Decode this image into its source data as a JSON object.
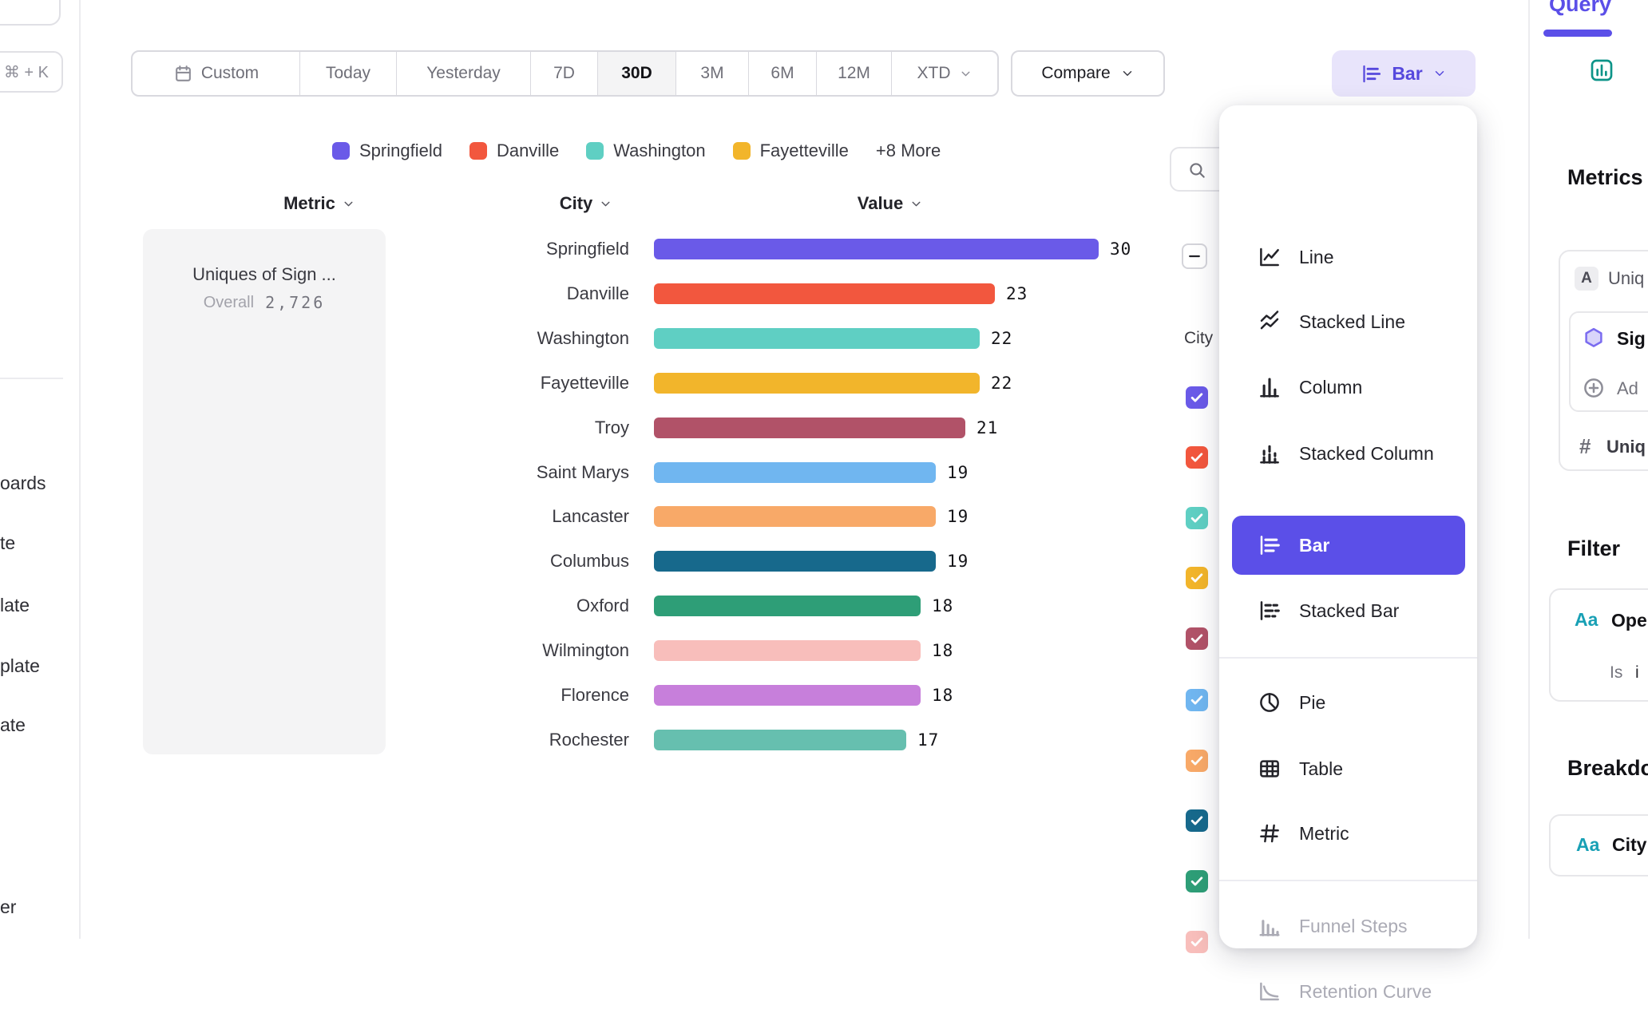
{
  "accent": {
    "purple": "#5B4FE8",
    "purple_light_bg": "#e8e4fb",
    "border": "#d9d9df",
    "divider": "#ececef",
    "teal_icon": "#0d9488",
    "aa_icon": "#18a0b5"
  },
  "left_rail": {
    "top_shortcut": "⌘ + K",
    "items": [
      "oards",
      "te",
      "late",
      "plate",
      "ate",
      "er"
    ]
  },
  "toolbar": {
    "date_ranges": [
      "Custom",
      "Today",
      "Yesterday",
      "7D",
      "30D",
      "3M",
      "6M",
      "12M",
      "XTD"
    ],
    "active_range": "30D",
    "compare_label": "Compare",
    "chart_type_label": "Bar"
  },
  "legend": {
    "items": [
      {
        "label": "Springfield",
        "color": "#6A5AE8"
      },
      {
        "label": "Danville",
        "color": "#F2573E"
      },
      {
        "label": "Washington",
        "color": "#5FCFC3"
      },
      {
        "label": "Fayetteville",
        "color": "#F2B52B"
      }
    ],
    "more_label": "+8 More"
  },
  "table": {
    "headers": [
      "Metric",
      "City",
      "Value"
    ]
  },
  "metric_card": {
    "title": "Uniques of Sign ...",
    "overall_label": "Overall",
    "overall_value": "2,726"
  },
  "chart_data": {
    "type": "bar",
    "orientation": "horizontal",
    "title": "Uniques of Sign ...",
    "overall_total": 2726,
    "categories": [
      "Springfield",
      "Danville",
      "Washington",
      "Fayetteville",
      "Troy",
      "Saint Marys",
      "Lancaster",
      "Columbus",
      "Oxford",
      "Wilmington",
      "Florence",
      "Rochester"
    ],
    "values": [
      30,
      23,
      22,
      22,
      21,
      19,
      19,
      19,
      18,
      18,
      18,
      17
    ],
    "colors": [
      "#6A5AE8",
      "#F2573E",
      "#5FCFC3",
      "#F2B52B",
      "#B15268",
      "#70B6F0",
      "#F8A968",
      "#17698C",
      "#2E9E77",
      "#F8BEBB",
      "#C77FDB",
      "#66BFAF"
    ],
    "xlim": [
      0,
      30
    ],
    "value_labels_shown": true,
    "grid": false,
    "legend_position": "top",
    "hidden_series_count": 8
  },
  "city_filter": {
    "header": "City",
    "select_all_state": "indeterminate",
    "all_checked": true,
    "checkbox_colors": [
      "#6A5AE8",
      "#F2573E",
      "#5FCFC3",
      "#F2B52B",
      "#B15268",
      "#70B6F0",
      "#F8A968",
      "#17698C",
      "#2E9E77",
      "#F8BEBB"
    ]
  },
  "chart_type_menu": {
    "items": [
      {
        "label": "Line",
        "icon": "line-chart-icon",
        "state": "normal"
      },
      {
        "label": "Stacked Line",
        "icon": "stacked-line-icon",
        "state": "normal"
      },
      {
        "label": "Column",
        "icon": "column-chart-icon",
        "state": "normal"
      },
      {
        "label": "Stacked Column",
        "icon": "stacked-column-icon",
        "state": "normal"
      },
      {
        "label": "Bar",
        "icon": "bar-chart-icon",
        "state": "selected"
      },
      {
        "label": "Stacked Bar",
        "icon": "stacked-bar-icon",
        "state": "normal"
      },
      {
        "label": "Pie",
        "icon": "pie-chart-icon",
        "state": "normal"
      },
      {
        "label": "Table",
        "icon": "table-icon",
        "state": "normal"
      },
      {
        "label": "Metric",
        "icon": "hash-icon",
        "state": "normal"
      },
      {
        "label": "Funnel Steps",
        "icon": "funnel-icon",
        "state": "disabled"
      },
      {
        "label": "Retention Curve",
        "icon": "retention-icon",
        "state": "disabled"
      }
    ]
  },
  "query_panel": {
    "tab": "Query",
    "metrics_heading": "Metrics",
    "metric_badge": "A",
    "metric_label": "Uniq",
    "event_label": "Sig",
    "add_label": "Ad",
    "measure_prefix": "#",
    "measure_label": "Uniq",
    "filter_heading": "Filter",
    "filter_type": "Aa",
    "filter_label": "Ope",
    "filter_operator": "Is",
    "filter_value": "i",
    "breakdown_heading": "Breakdo",
    "breakdown_type": "Aa",
    "breakdown_label": "City"
  }
}
